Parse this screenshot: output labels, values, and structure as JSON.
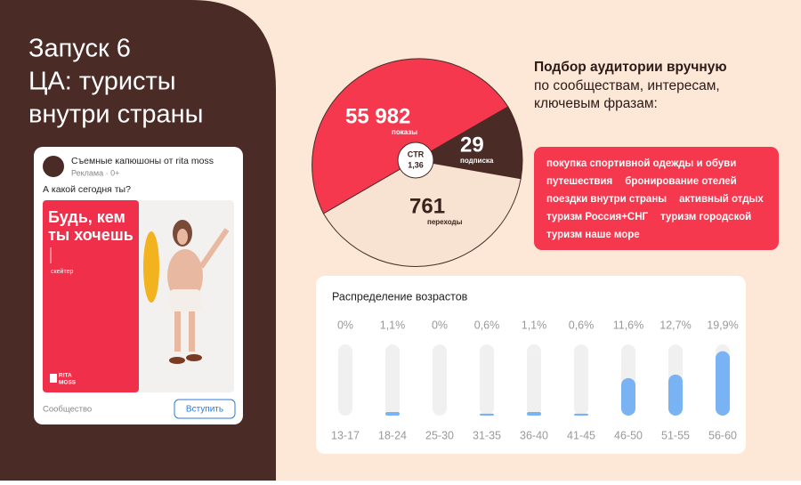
{
  "title": [
    "Запуск 6",
    "ЦА: туристы",
    "внутри страны"
  ],
  "ad": {
    "advertiser": "Съемные капюшоны от rita moss",
    "meta": "Реклама · 0+",
    "text": "А какой сегодня ты?",
    "banner_text": [
      "Будь, кем",
      "ты хочешь"
    ],
    "banner_caption": "скейтер",
    "logo": [
      "RITA",
      "MOSS"
    ],
    "footer": "Сообщество",
    "button": "Вступить"
  },
  "funnel": {
    "impressions": {
      "value": "55 982",
      "label": "показы"
    },
    "subscriptions": {
      "value": "29",
      "label": "подписка"
    },
    "clicks": {
      "value": "761",
      "label": "переходы"
    },
    "ctr": {
      "label": "CTR",
      "value": "1,36"
    }
  },
  "targeting": {
    "heading": "Подбор аудитории вручную",
    "text": [
      "по сообществам, интересам,",
      "ключевым фразам:"
    ],
    "tags": [
      "покупка спортивной одежды и обуви",
      "путешествия",
      "бронирование отелей",
      "поездки внутри страны",
      "активный отдых",
      "туризм Россия+СНГ",
      "туризм городской",
      "туризм наше море"
    ]
  },
  "chart_data": {
    "type": "bar",
    "title": "Распределение возрастов",
    "categories": [
      "13-17",
      "18-24",
      "25-30",
      "31-35",
      "36-40",
      "41-45",
      "46-50",
      "51-55",
      "56-60"
    ],
    "values": [
      0,
      1.1,
      0,
      0.6,
      1.1,
      0.6,
      11.6,
      12.7,
      19.9
    ],
    "value_labels": [
      "0%",
      "1,1%",
      "0%",
      "0,6%",
      "1,1%",
      "0,6%",
      "11,6%",
      "12,7%",
      "19,9%"
    ],
    "ylim": [
      0,
      22
    ],
    "color": "#79b3f4"
  }
}
